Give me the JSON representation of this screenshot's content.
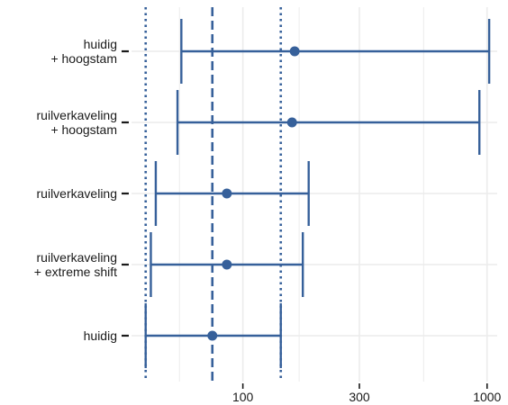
{
  "chart_data": {
    "type": "errorbar",
    "x_scale": "log",
    "xlim": [
      35,
      1100
    ],
    "x_ticks": [
      {
        "value": 100,
        "label": "100"
      },
      {
        "value": 300,
        "label": "300"
      },
      {
        "value": 1000,
        "label": "1000"
      }
    ],
    "minor_gridlines": [
      55,
      170,
      550
    ],
    "categories": [
      {
        "label": [
          "huidig",
          "+ hoogstam"
        ],
        "point": 163,
        "low": 56,
        "high": 1020
      },
      {
        "label": [
          "ruilverkaveling",
          "+ hoogstam"
        ],
        "point": 159,
        "low": 54,
        "high": 930
      },
      {
        "label": [
          "ruilverkaveling"
        ],
        "point": 86,
        "low": 44,
        "high": 186
      },
      {
        "label": [
          "ruilverkaveling",
          "+ extreme shift"
        ],
        "point": 86,
        "low": 42,
        "high": 176
      },
      {
        "label": [
          "huidig"
        ],
        "point": 75,
        "low": 40,
        "high": 143
      }
    ],
    "reference_lines": [
      {
        "value": 75,
        "style": "dashed"
      },
      {
        "value": 40,
        "style": "dotted"
      },
      {
        "value": 143,
        "style": "dotted"
      }
    ],
    "grid": true,
    "colors": {
      "series": "#36609a",
      "reference": "#36609a",
      "grid": "#ececec",
      "tick": "#1a1a1a"
    }
  }
}
